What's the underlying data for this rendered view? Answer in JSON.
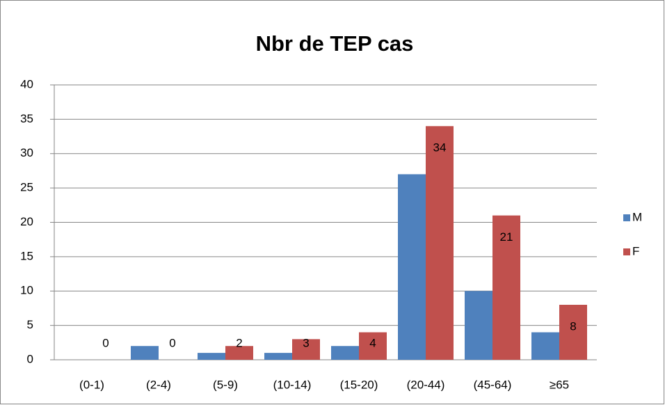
{
  "chart_data": {
    "type": "bar",
    "title": "Nbr de TEP cas",
    "categories": [
      "(0-1)",
      "(2-4)",
      "(5-9)",
      "(10-14)",
      "(15-20)",
      "(20-44)",
      "(45-64)",
      "≥65"
    ],
    "series": [
      {
        "name": "M",
        "color": "#4f81bd",
        "values": [
          0,
          2,
          1,
          1,
          2,
          27,
          10,
          4
        ]
      },
      {
        "name": "F",
        "color": "#c0504d",
        "values": [
          0,
          0,
          2,
          3,
          4,
          34,
          21,
          8
        ],
        "data_labels": true
      }
    ],
    "ylim": [
      0,
      40
    ],
    "yticks": [
      0,
      5,
      10,
      15,
      20,
      25,
      30,
      35,
      40
    ],
    "grid": true,
    "legend": "right"
  }
}
